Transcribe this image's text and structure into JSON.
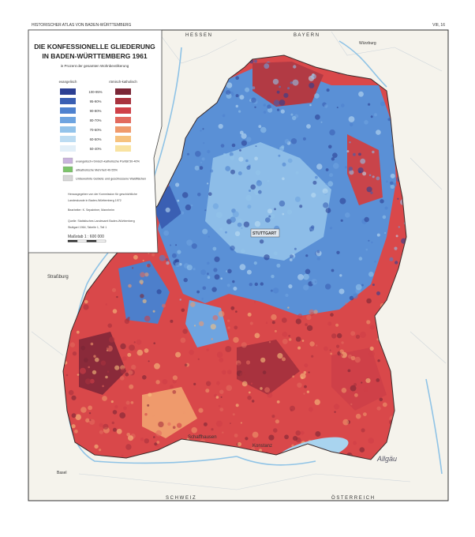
{
  "header": {
    "left": "HISTORISCHER ATLAS VON BADEN-WÜRTTEMBERG",
    "right": "VIII, 16"
  },
  "legend": {
    "title_line1": "DIE KONFESSIONELLE GLIEDERUNG",
    "title_line2": "IN BADEN-WÜRTTEMBERG 1961",
    "subtitle": "in Prozent der gesamten Wohnbevölkerung",
    "column_left": "evangelisch",
    "column_right": "römisch-katholisch",
    "rows": [
      {
        "label": "100-95%",
        "left_color": "#2c3f93",
        "right_color": "#7a2636"
      },
      {
        "label": "95-90%",
        "left_color": "#3a5fb3",
        "right_color": "#a8323e"
      },
      {
        "label": "90-80%",
        "left_color": "#4f82cf",
        "right_color": "#cf4048"
      },
      {
        "label": "80-70%",
        "left_color": "#6ea4e0",
        "right_color": "#e26a5e"
      },
      {
        "label": "70-60%",
        "left_color": "#93c3ea",
        "right_color": "#ef9a6c"
      },
      {
        "label": "60-50%",
        "left_color": "#bcdcf2",
        "right_color": "#f6c27e"
      },
      {
        "label": "50-40%",
        "left_color": "#e2eff8",
        "right_color": "#f9e3a1"
      }
    ],
    "extras": [
      {
        "label": "evangelisch-römisch-katholische Parität 50-40%",
        "color": "#c9b3dd"
      },
      {
        "label": "altkatholische Mehrheit 40-55%",
        "color": "#7cc46a"
      },
      {
        "label": "Unbewohnte Gebiete und geschlossene Waldflächen",
        "color": "#d6d6d6"
      }
    ],
    "notes": [
      "Herausgegeben von der Kommission für geschichtliche",
      "Landeskunde in Baden-Württemberg 1972",
      "Bearbeiter: K. Sepaintner, Mannheim",
      "Quelle: Statistisches Landesamt Baden-Württemberg",
      "Stuttgart 1964, Tabelle 1, Teil 1"
    ],
    "scale": "Maßstab 1 : 600 000"
  },
  "map_labels": {
    "stuttgart": "STUTTGART",
    "strassburg": "Straßburg",
    "schaffhausen": "Schaffhausen",
    "konstanz": "Konstanz",
    "allgaeu": "Allgäu",
    "schweiz": "S C H W E I Z",
    "oesterreich": "Ö S T E R R E I C H",
    "hessen": "H E S S E N",
    "bayern": "B A Y E R N",
    "wuerzburg": "Würzburg",
    "basel": "Basel"
  }
}
